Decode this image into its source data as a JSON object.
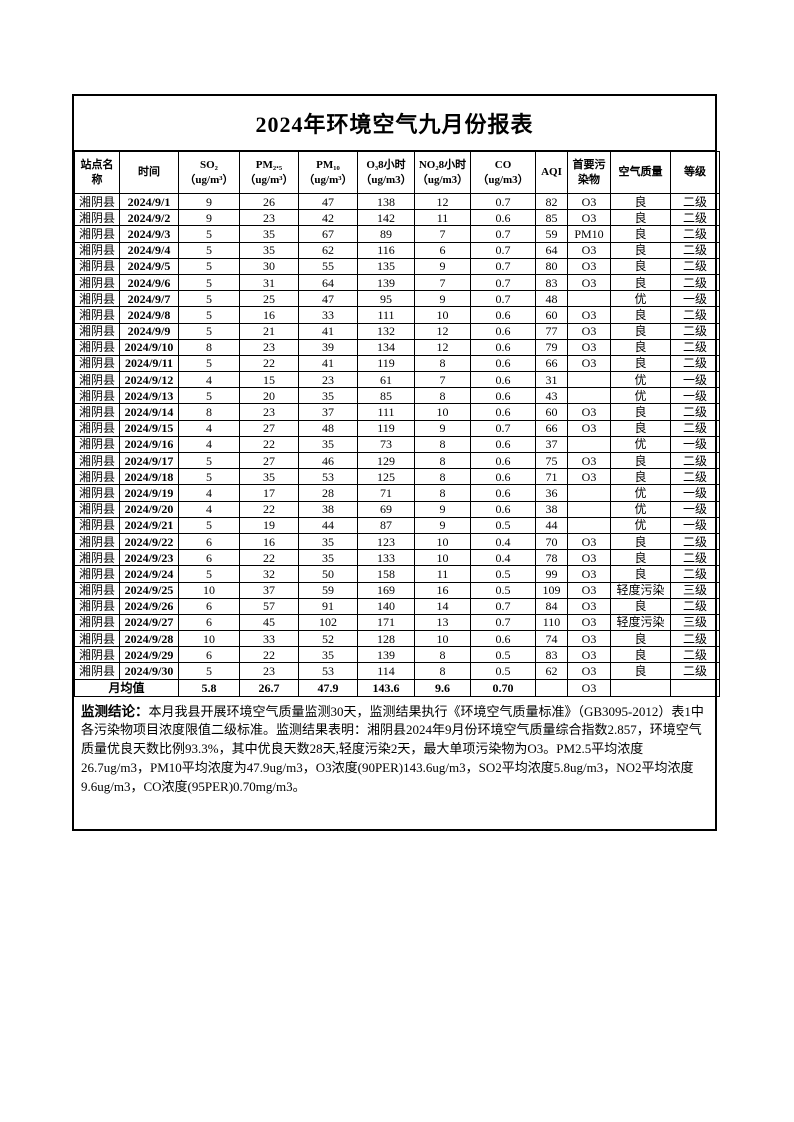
{
  "page": {
    "title": "2024年环境空气九月份报表"
  },
  "table": {
    "headers": [
      "站点名称",
      "时间",
      "SO₂\n（ug/m³）",
      "PM₂.₅\n（ug/m³）",
      "PM₁₀\n（ug/m³）",
      "O₃8小时\n（ug/m3）",
      "NO₂8小时\n（ug/m3）",
      "CO\n（ug/m3）",
      "AQI",
      "首要污染物",
      "空气质量",
      "等级"
    ],
    "rows": [
      [
        "湘阴县",
        "2024/9/1",
        "9",
        "26",
        "47",
        "138",
        "12",
        "0.7",
        "82",
        "O3",
        "良",
        "二级"
      ],
      [
        "湘阴县",
        "2024/9/2",
        "9",
        "23",
        "42",
        "142",
        "11",
        "0.6",
        "85",
        "O3",
        "良",
        "二级"
      ],
      [
        "湘阴县",
        "2024/9/3",
        "5",
        "35",
        "67",
        "89",
        "7",
        "0.7",
        "59",
        "PM10",
        "良",
        "二级"
      ],
      [
        "湘阴县",
        "2024/9/4",
        "5",
        "35",
        "62",
        "116",
        "6",
        "0.7",
        "64",
        "O3",
        "良",
        "二级"
      ],
      [
        "湘阴县",
        "2024/9/5",
        "5",
        "30",
        "55",
        "135",
        "9",
        "0.7",
        "80",
        "O3",
        "良",
        "二级"
      ],
      [
        "湘阴县",
        "2024/9/6",
        "5",
        "31",
        "64",
        "139",
        "7",
        "0.7",
        "83",
        "O3",
        "良",
        "二级"
      ],
      [
        "湘阴县",
        "2024/9/7",
        "5",
        "25",
        "47",
        "95",
        "9",
        "0.7",
        "48",
        "",
        "优",
        "一级"
      ],
      [
        "湘阴县",
        "2024/9/8",
        "5",
        "16",
        "33",
        "111",
        "10",
        "0.6",
        "60",
        "O3",
        "良",
        "二级"
      ],
      [
        "湘阴县",
        "2024/9/9",
        "5",
        "21",
        "41",
        "132",
        "12",
        "0.6",
        "77",
        "O3",
        "良",
        "二级"
      ],
      [
        "湘阴县",
        "2024/9/10",
        "8",
        "23",
        "39",
        "134",
        "12",
        "0.6",
        "79",
        "O3",
        "良",
        "二级"
      ],
      [
        "湘阴县",
        "2024/9/11",
        "5",
        "22",
        "41",
        "119",
        "8",
        "0.6",
        "66",
        "O3",
        "良",
        "二级"
      ],
      [
        "湘阴县",
        "2024/9/12",
        "4",
        "15",
        "23",
        "61",
        "7",
        "0.6",
        "31",
        "",
        "优",
        "一级"
      ],
      [
        "湘阴县",
        "2024/9/13",
        "5",
        "20",
        "35",
        "85",
        "8",
        "0.6",
        "43",
        "",
        "优",
        "一级"
      ],
      [
        "湘阴县",
        "2024/9/14",
        "8",
        "23",
        "37",
        "111",
        "10",
        "0.6",
        "60",
        "O3",
        "良",
        "二级"
      ],
      [
        "湘阴县",
        "2024/9/15",
        "4",
        "27",
        "48",
        "119",
        "9",
        "0.7",
        "66",
        "O3",
        "良",
        "二级"
      ],
      [
        "湘阴县",
        "2024/9/16",
        "4",
        "22",
        "35",
        "73",
        "8",
        "0.6",
        "37",
        "",
        "优",
        "一级"
      ],
      [
        "湘阴县",
        "2024/9/17",
        "5",
        "27",
        "46",
        "129",
        "8",
        "0.6",
        "75",
        "O3",
        "良",
        "二级"
      ],
      [
        "湘阴县",
        "2024/9/18",
        "5",
        "35",
        "53",
        "125",
        "8",
        "0.6",
        "71",
        "O3",
        "良",
        "二级"
      ],
      [
        "湘阴县",
        "2024/9/19",
        "4",
        "17",
        "28",
        "71",
        "8",
        "0.6",
        "36",
        "",
        "优",
        "一级"
      ],
      [
        "湘阴县",
        "2024/9/20",
        "4",
        "22",
        "38",
        "69",
        "9",
        "0.6",
        "38",
        "",
        "优",
        "一级"
      ],
      [
        "湘阴县",
        "2024/9/21",
        "5",
        "19",
        "44",
        "87",
        "9",
        "0.5",
        "44",
        "",
        "优",
        "一级"
      ],
      [
        "湘阴县",
        "2024/9/22",
        "6",
        "16",
        "35",
        "123",
        "10",
        "0.4",
        "70",
        "O3",
        "良",
        "二级"
      ],
      [
        "湘阴县",
        "2024/9/23",
        "6",
        "22",
        "35",
        "133",
        "10",
        "0.4",
        "78",
        "O3",
        "良",
        "二级"
      ],
      [
        "湘阴县",
        "2024/9/24",
        "5",
        "32",
        "50",
        "158",
        "11",
        "0.5",
        "99",
        "O3",
        "良",
        "二级"
      ],
      [
        "湘阴县",
        "2024/9/25",
        "10",
        "37",
        "59",
        "169",
        "16",
        "0.5",
        "109",
        "O3",
        "轻度污染",
        "三级"
      ],
      [
        "湘阴县",
        "2024/9/26",
        "6",
        "57",
        "91",
        "140",
        "14",
        "0.7",
        "84",
        "O3",
        "良",
        "二级"
      ],
      [
        "湘阴县",
        "2024/9/27",
        "6",
        "45",
        "102",
        "171",
        "13",
        "0.7",
        "110",
        "O3",
        "轻度污染",
        "三级"
      ],
      [
        "湘阴县",
        "2024/9/28",
        "10",
        "33",
        "52",
        "128",
        "10",
        "0.6",
        "74",
        "O3",
        "良",
        "二级"
      ],
      [
        "湘阴县",
        "2024/9/29",
        "6",
        "22",
        "35",
        "139",
        "8",
        "0.5",
        "83",
        "O3",
        "良",
        "二级"
      ],
      [
        "湘阴县",
        "2024/9/30",
        "5",
        "23",
        "53",
        "114",
        "8",
        "0.5",
        "62",
        "O3",
        "良",
        "二级"
      ]
    ],
    "monthly_avg": {
      "label": "月均值",
      "values": [
        "5.8",
        "26.7",
        "47.9",
        "143.6",
        "9.6",
        "0.70",
        "",
        "O3",
        "",
        ""
      ]
    }
  },
  "conclusion": {
    "label": "监测结论：",
    "text": "本月我县开展环境空气质量监测30天，监测结果执行《环境空气质量标准》（GB3095-2012）表1中各污染物项目浓度限值二级标准。监测结果表明：湘阴县2024年9月份环境空气质量综合指数2.857，环境空气质量优良天数比例93.3%，其中优良天数28天,轻度污染2天，最大单项污染物为O3。PM2.5平均浓度26.7ug/m3，PM10平均浓度为47.9ug/m3，O3浓度(90PER)143.6ug/m3，SO2平均浓度5.8ug/m3，NO2平均浓度9.6ug/m3，CO浓度(95PER)0.70mg/m3。"
  }
}
